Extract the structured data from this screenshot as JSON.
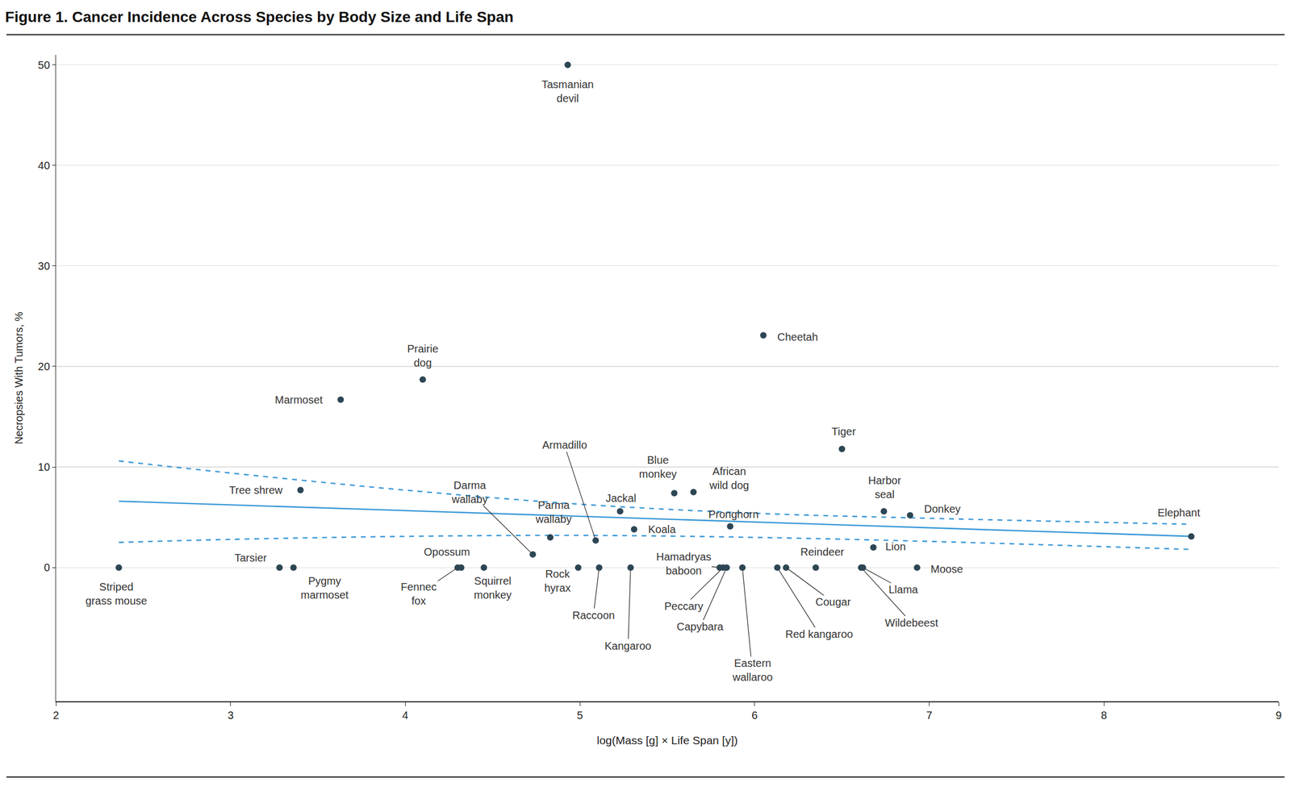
{
  "chart_data": {
    "type": "scatter",
    "title": "Figure 1. Cancer Incidence Across Species by Body Size and Life Span",
    "x_label": "log(Mass [g] × Life Span [y])",
    "y_label": "Necropsies With Tumors, %",
    "xlim": [
      2,
      9
    ],
    "xticks": [
      2,
      3,
      4,
      5,
      6,
      7,
      8,
      9
    ],
    "ylim": [
      -13.3,
      51
    ],
    "yticks": [
      0,
      10,
      20,
      30,
      40,
      50
    ],
    "grid": true,
    "series": [
      {
        "type": "scatter",
        "marker": "circle",
        "color": "#2d4654",
        "labels": [
          "Striped grass mouse",
          "Tarsier",
          "Pygmy marmoset",
          "Tree shrew",
          "Marmoset",
          "Prairie dog",
          "Opossum",
          "Fennec fox",
          "Squirrel monkey",
          "Darma wallaby",
          "Tasmanian devil",
          "Parma wallaby",
          "Rock hyrax",
          "Armadillo",
          "Raccoon",
          "Jackal",
          "Kangaroo",
          "Koala",
          "Blue monkey",
          "African wild dog",
          "Hamadryas baboon",
          "Peccary",
          "Capybara",
          "Pronghorn",
          "Eastern wallaroo",
          "Cheetah",
          "Red kangaroo",
          "Cougar",
          "Reindeer",
          "Tiger",
          "Wildebeest",
          "Llama",
          "Lion",
          "Harbor seal",
          "Donkey",
          "Moose",
          "Elephant"
        ],
        "x": [
          2.36,
          3.28,
          3.36,
          3.4,
          3.63,
          4.1,
          4.32,
          4.3,
          4.45,
          4.73,
          4.93,
          4.83,
          4.99,
          5.09,
          5.11,
          5.23,
          5.29,
          5.31,
          5.54,
          5.65,
          5.8,
          5.82,
          5.84,
          5.86,
          5.93,
          6.05,
          6.13,
          6.18,
          6.35,
          6.5,
          6.61,
          6.62,
          6.68,
          6.74,
          6.89,
          6.93,
          8.5
        ],
        "values": [
          0,
          0,
          0,
          7.7,
          16.7,
          18.7,
          0,
          0,
          0,
          1.3,
          50,
          3.0,
          0,
          2.7,
          0,
          5.6,
          0,
          3.8,
          7.4,
          7.5,
          0,
          0,
          0,
          4.1,
          0,
          23.1,
          0,
          0,
          0,
          11.8,
          0,
          0,
          2.0,
          5.6,
          5.2,
          0,
          3.1
        ]
      },
      {
        "type": "line",
        "line_style": "solid",
        "color": "#3d9ad8",
        "x": [
          2.36,
          8.5
        ],
        "values": [
          6.6,
          3.1
        ]
      },
      {
        "type": "line",
        "line_style": "dashed",
        "color": "#3d9ad8",
        "x": [
          2.36,
          3,
          4,
          5,
          6,
          7,
          8.5
        ],
        "values": [
          10.6,
          9.4,
          7.7,
          6.3,
          5.4,
          4.9,
          4.3
        ]
      },
      {
        "type": "line",
        "line_style": "dashed",
        "color": "#3d9ad8",
        "x": [
          2.36,
          3,
          4,
          5,
          6,
          7,
          8.5
        ],
        "values": [
          2.5,
          2.8,
          3.1,
          3.2,
          3.0,
          2.6,
          1.8
        ]
      }
    ]
  }
}
